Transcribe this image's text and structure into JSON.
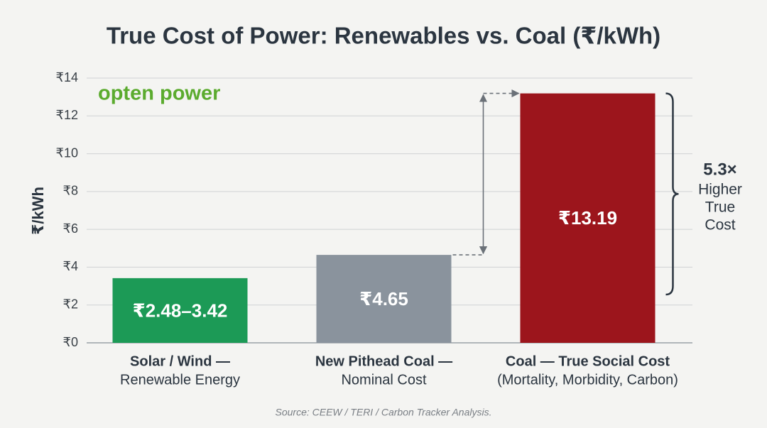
{
  "chart_data": {
    "type": "bar",
    "title": "True Cost of Power: Renewables vs. Coal (₹/kWh)",
    "logo": "opten power",
    "y_label": "₹/kWh",
    "categories": [
      [
        "Solar / Wind —",
        "Renewable Energy"
      ],
      [
        "New Pithead Coal —",
        "Nominal Cost"
      ],
      [
        "Coal — True Social Cost",
        "(Mortality, Morbidity, Carbon)"
      ]
    ],
    "values": [
      3.42,
      4.65,
      13.19
    ],
    "value_labels": [
      "₹2.48–3.42",
      "₹4.65",
      "₹13.19"
    ],
    "colors": [
      "#1c9a56",
      "#8a939d",
      "#9c151c"
    ],
    "ylim": [
      0,
      14
    ],
    "yticks": [
      {
        "value": 0,
        "label": "₹0"
      },
      {
        "value": 2,
        "label": "₹2"
      },
      {
        "value": 4,
        "label": "₹4"
      },
      {
        "value": 6,
        "label": "₹6"
      },
      {
        "value": 8,
        "label": "₹8"
      },
      {
        "value": 10,
        "label": "₹10"
      },
      {
        "value": 12,
        "label": "₹12"
      },
      {
        "value": 14,
        "label": "₹14"
      }
    ],
    "grid": true,
    "annotation": {
      "headline": "5.3×",
      "lines": [
        "Higher",
        "True",
        "Cost"
      ]
    },
    "source": "Source: CEEW / TERI / Carbon Tracker Analysis."
  }
}
